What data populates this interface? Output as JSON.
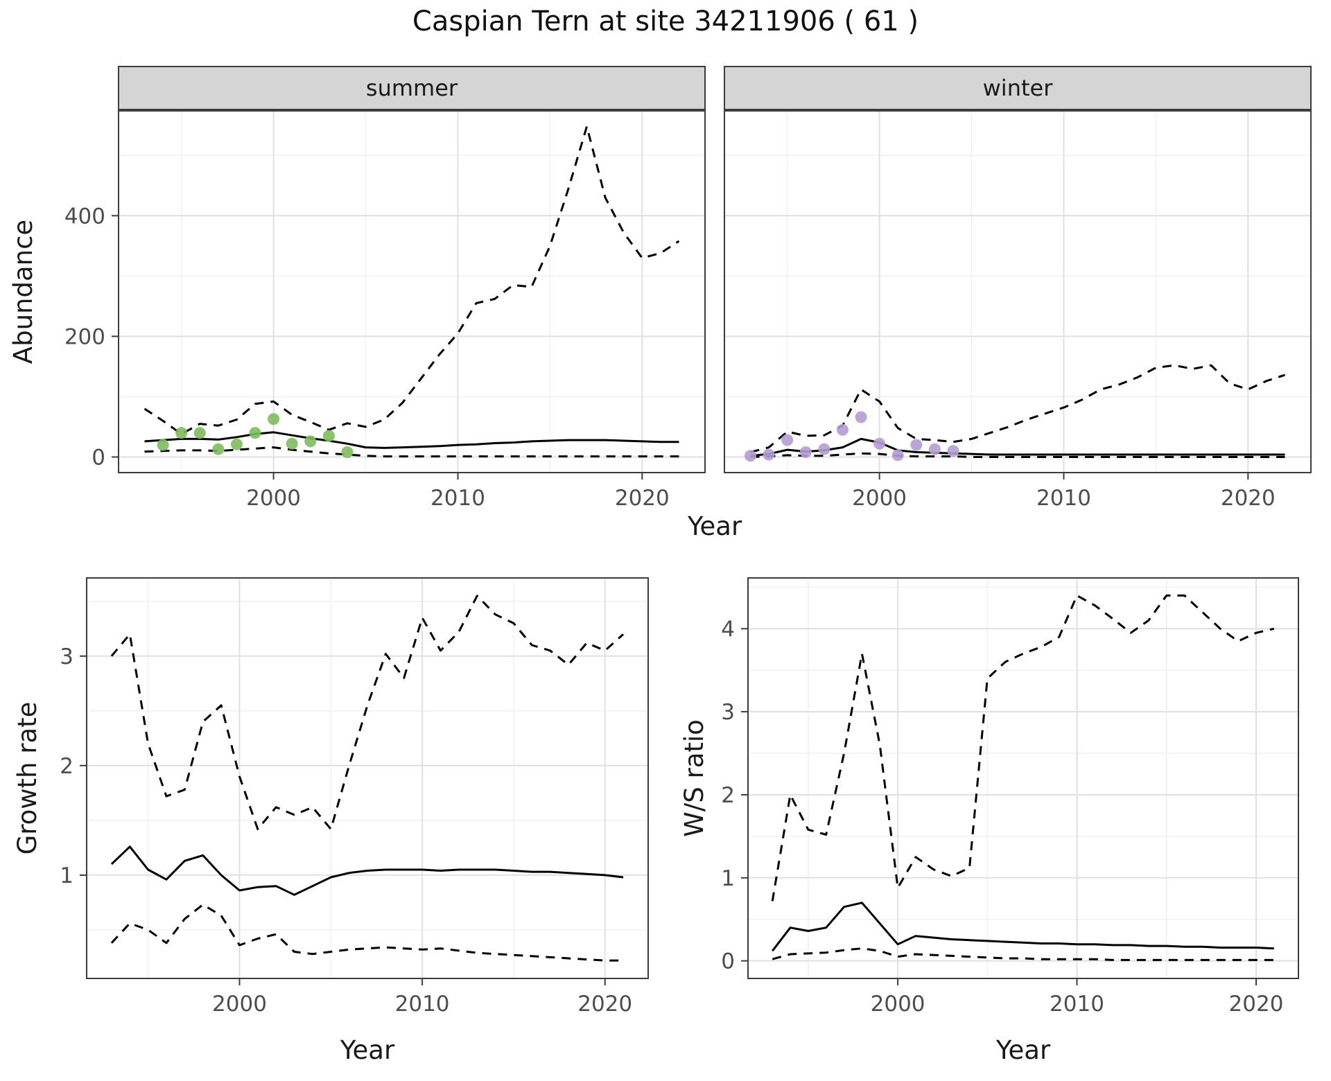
{
  "title": "Caspian Tern at site 34211906 ( 61 )",
  "palette": {
    "summer_observations": "#7cbe5c",
    "winter_observations": "#b59cd4",
    "model_line": "#000000",
    "panel_border": "#3c3c3c",
    "grid_major": "#e0e0e0",
    "grid_minor": "#f0f0f0",
    "strip_background": "#d5d5d5",
    "tick_label": "#4d4d4d",
    "text": "#1a1a1a"
  },
  "chart_data": [
    {
      "id": "abundance_summer",
      "type": "line",
      "title": "summer",
      "xlabel": "Year",
      "ylabel": "Abundance",
      "xlim": [
        1991.55,
        2023.45
      ],
      "ylim": [
        -27,
        575
      ],
      "xticks": [
        2000,
        2010,
        2020
      ],
      "yticks": [
        0,
        200,
        400
      ],
      "xticks_minor": [
        1995,
        2005,
        2015
      ],
      "yticks_minor": [
        100,
        300,
        500
      ],
      "x": [
        1993,
        1994,
        1995,
        1996,
        1997,
        1998,
        1999,
        2000,
        2001,
        2002,
        2003,
        2004,
        2005,
        2006,
        2007,
        2008,
        2009,
        2010,
        2011,
        2012,
        2013,
        2014,
        2015,
        2016,
        2017,
        2018,
        2019,
        2020,
        2021,
        2022
      ],
      "series": [
        {
          "name": "upper_95ci",
          "style": "dashed",
          "y": [
            80,
            60,
            38,
            55,
            52,
            62,
            88,
            92,
            70,
            58,
            45,
            56,
            50,
            62,
            90,
            130,
            170,
            205,
            255,
            262,
            285,
            282,
            350,
            445,
            548,
            430,
            372,
            330,
            338,
            358
          ]
        },
        {
          "name": "median",
          "style": "solid",
          "y": [
            26,
            28,
            30,
            30,
            29,
            33,
            38,
            41,
            36,
            31,
            27,
            22,
            16,
            15,
            16,
            17,
            18,
            20,
            21,
            23,
            24,
            26,
            27,
            28,
            28,
            28,
            27,
            26,
            25,
            25
          ]
        },
        {
          "name": "lower_95ci",
          "style": "dashed",
          "y": [
            9,
            10,
            11,
            11,
            10,
            12,
            14,
            16,
            12,
            9,
            6,
            4,
            2,
            1,
            1,
            1,
            1,
            1,
            1,
            1,
            1,
            1,
            1,
            1,
            1,
            1,
            1,
            1,
            1,
            1
          ]
        },
        {
          "name": "observed_counts_summer",
          "style": "points",
          "color": "#7cbe5c",
          "x": [
            1994,
            1995,
            1996,
            1997,
            1998,
            1999,
            2000,
            2001,
            2002,
            2003,
            2004
          ],
          "y": [
            20,
            40,
            40,
            13,
            21,
            40,
            63,
            22,
            26,
            35,
            8
          ]
        }
      ]
    },
    {
      "id": "abundance_winter",
      "type": "line",
      "title": "winter",
      "xlabel": "Year",
      "ylabel": "Abundance",
      "xlim": [
        1991.55,
        2023.45
      ],
      "ylim": [
        -27,
        575
      ],
      "xticks": [
        2000,
        2010,
        2020
      ],
      "yticks": [
        0,
        200,
        400
      ],
      "xticks_minor": [
        1995,
        2005,
        2015
      ],
      "yticks_minor": [
        100,
        300,
        500
      ],
      "x": [
        1993,
        1994,
        1995,
        1996,
        1997,
        1998,
        1999,
        2000,
        2001,
        2002,
        2003,
        2004,
        2005,
        2006,
        2007,
        2008,
        2009,
        2010,
        2011,
        2012,
        2013,
        2014,
        2015,
        2016,
        2017,
        2018,
        2019,
        2020,
        2021,
        2022
      ],
      "series": [
        {
          "name": "upper_95ci",
          "style": "dashed",
          "y": [
            8,
            16,
            42,
            35,
            36,
            52,
            112,
            92,
            48,
            30,
            28,
            25,
            30,
            40,
            50,
            62,
            72,
            82,
            95,
            112,
            120,
            132,
            148,
            152,
            146,
            152,
            122,
            112,
            126,
            136
          ]
        },
        {
          "name": "median",
          "style": "solid",
          "y": [
            2,
            5,
            12,
            9,
            11,
            16,
            30,
            24,
            11,
            8,
            7,
            6,
            5,
            4,
            4,
            4,
            4,
            4,
            4,
            4,
            4,
            4,
            4,
            4,
            4,
            4,
            4,
            4,
            4,
            4
          ]
        },
        {
          "name": "lower_95ci",
          "style": "dashed",
          "y": [
            0,
            1,
            3,
            2,
            2,
            4,
            6,
            5,
            2,
            1,
            1,
            1,
            0,
            0,
            0,
            0,
            0,
            0,
            0,
            0,
            0,
            0,
            0,
            0,
            0,
            0,
            0,
            0,
            0,
            0
          ]
        },
        {
          "name": "observed_counts_winter",
          "style": "points",
          "color": "#b59cd4",
          "x": [
            1993,
            1994,
            1995,
            1996,
            1997,
            1998,
            1999,
            2000,
            2001,
            2002,
            2003,
            2004
          ],
          "y": [
            2,
            4,
            28,
            8,
            13,
            45,
            66,
            22,
            3,
            20,
            13,
            10
          ]
        }
      ]
    },
    {
      "id": "growth_rate",
      "type": "line",
      "title": "Growth rate",
      "xlabel": "Year",
      "ylabel": "Growth rate",
      "xlim": [
        1991.6,
        2022.4
      ],
      "ylim": [
        0.05,
        3.72
      ],
      "xticks": [
        2000,
        2010,
        2020
      ],
      "yticks": [
        1,
        2,
        3
      ],
      "xticks_minor": [
        1995,
        2005,
        2015
      ],
      "yticks_minor": [
        0.5,
        1.5,
        2.5,
        3.5
      ],
      "x": [
        1993,
        1994,
        1995,
        1996,
        1997,
        1998,
        1999,
        2000,
        2001,
        2002,
        2003,
        2004,
        2005,
        2006,
        2007,
        2008,
        2009,
        2010,
        2011,
        2012,
        2013,
        2014,
        2015,
        2016,
        2017,
        2018,
        2019,
        2020,
        2021
      ],
      "series": [
        {
          "name": "upper_95ci",
          "style": "dashed",
          "y": [
            3.0,
            3.2,
            2.2,
            1.72,
            1.78,
            2.4,
            2.55,
            1.9,
            1.42,
            1.62,
            1.55,
            1.62,
            1.42,
            2.0,
            2.55,
            3.02,
            2.8,
            3.35,
            3.05,
            3.22,
            3.55,
            3.38,
            3.3,
            3.1,
            3.05,
            2.92,
            3.12,
            3.05,
            3.2
          ]
        },
        {
          "name": "median",
          "style": "solid",
          "y": [
            1.1,
            1.26,
            1.05,
            0.96,
            1.13,
            1.18,
            1.0,
            0.86,
            0.89,
            0.9,
            0.82,
            0.9,
            0.98,
            1.02,
            1.04,
            1.05,
            1.05,
            1.05,
            1.04,
            1.05,
            1.05,
            1.05,
            1.04,
            1.03,
            1.03,
            1.02,
            1.01,
            1.0,
            0.98
          ]
        },
        {
          "name": "lower_95ci",
          "style": "dashed",
          "y": [
            0.38,
            0.56,
            0.5,
            0.38,
            0.6,
            0.73,
            0.63,
            0.36,
            0.42,
            0.46,
            0.3,
            0.28,
            0.3,
            0.32,
            0.33,
            0.34,
            0.33,
            0.32,
            0.33,
            0.31,
            0.29,
            0.28,
            0.27,
            0.26,
            0.25,
            0.24,
            0.23,
            0.22,
            0.22
          ]
        }
      ]
    },
    {
      "id": "ws_ratio",
      "type": "line",
      "title": "W/S ratio",
      "xlabel": "Year",
      "ylabel": "W/S ratio",
      "xlim": [
        1991.6,
        2022.4
      ],
      "ylim": [
        -0.22,
        4.62
      ],
      "xticks": [
        2000,
        2010,
        2020
      ],
      "yticks": [
        0,
        1,
        2,
        3,
        4
      ],
      "xticks_minor": [
        1995,
        2005,
        2015
      ],
      "yticks_minor": [
        0.5,
        1.5,
        2.5,
        3.5,
        4.5
      ],
      "x": [
        1993,
        1994,
        1995,
        1996,
        1997,
        1998,
        1999,
        2000,
        2001,
        2002,
        2003,
        2004,
        2005,
        2006,
        2007,
        2008,
        2009,
        2010,
        2011,
        2012,
        2013,
        2014,
        2015,
        2016,
        2017,
        2018,
        2019,
        2020,
        2021
      ],
      "series": [
        {
          "name": "upper_95ci",
          "style": "dashed",
          "y": [
            0.72,
            2.0,
            1.58,
            1.52,
            2.5,
            3.7,
            2.6,
            0.88,
            1.25,
            1.1,
            1.02,
            1.12,
            3.4,
            3.6,
            3.7,
            3.78,
            3.9,
            4.4,
            4.28,
            4.12,
            3.95,
            4.1,
            4.4,
            4.4,
            4.2,
            4.0,
            3.85,
            3.95,
            4.0
          ]
        },
        {
          "name": "median",
          "style": "solid",
          "y": [
            0.12,
            0.4,
            0.36,
            0.4,
            0.65,
            0.7,
            0.45,
            0.2,
            0.3,
            0.28,
            0.26,
            0.25,
            0.24,
            0.23,
            0.22,
            0.21,
            0.21,
            0.2,
            0.2,
            0.19,
            0.19,
            0.18,
            0.18,
            0.17,
            0.17,
            0.16,
            0.16,
            0.16,
            0.15
          ]
        },
        {
          "name": "lower_95ci",
          "style": "dashed",
          "y": [
            0.02,
            0.08,
            0.09,
            0.1,
            0.13,
            0.15,
            0.12,
            0.05,
            0.08,
            0.07,
            0.06,
            0.05,
            0.04,
            0.03,
            0.03,
            0.02,
            0.02,
            0.02,
            0.02,
            0.01,
            0.01,
            0.01,
            0.01,
            0.01,
            0.01,
            0.01,
            0.01,
            0.01,
            0.01
          ]
        }
      ]
    }
  ]
}
